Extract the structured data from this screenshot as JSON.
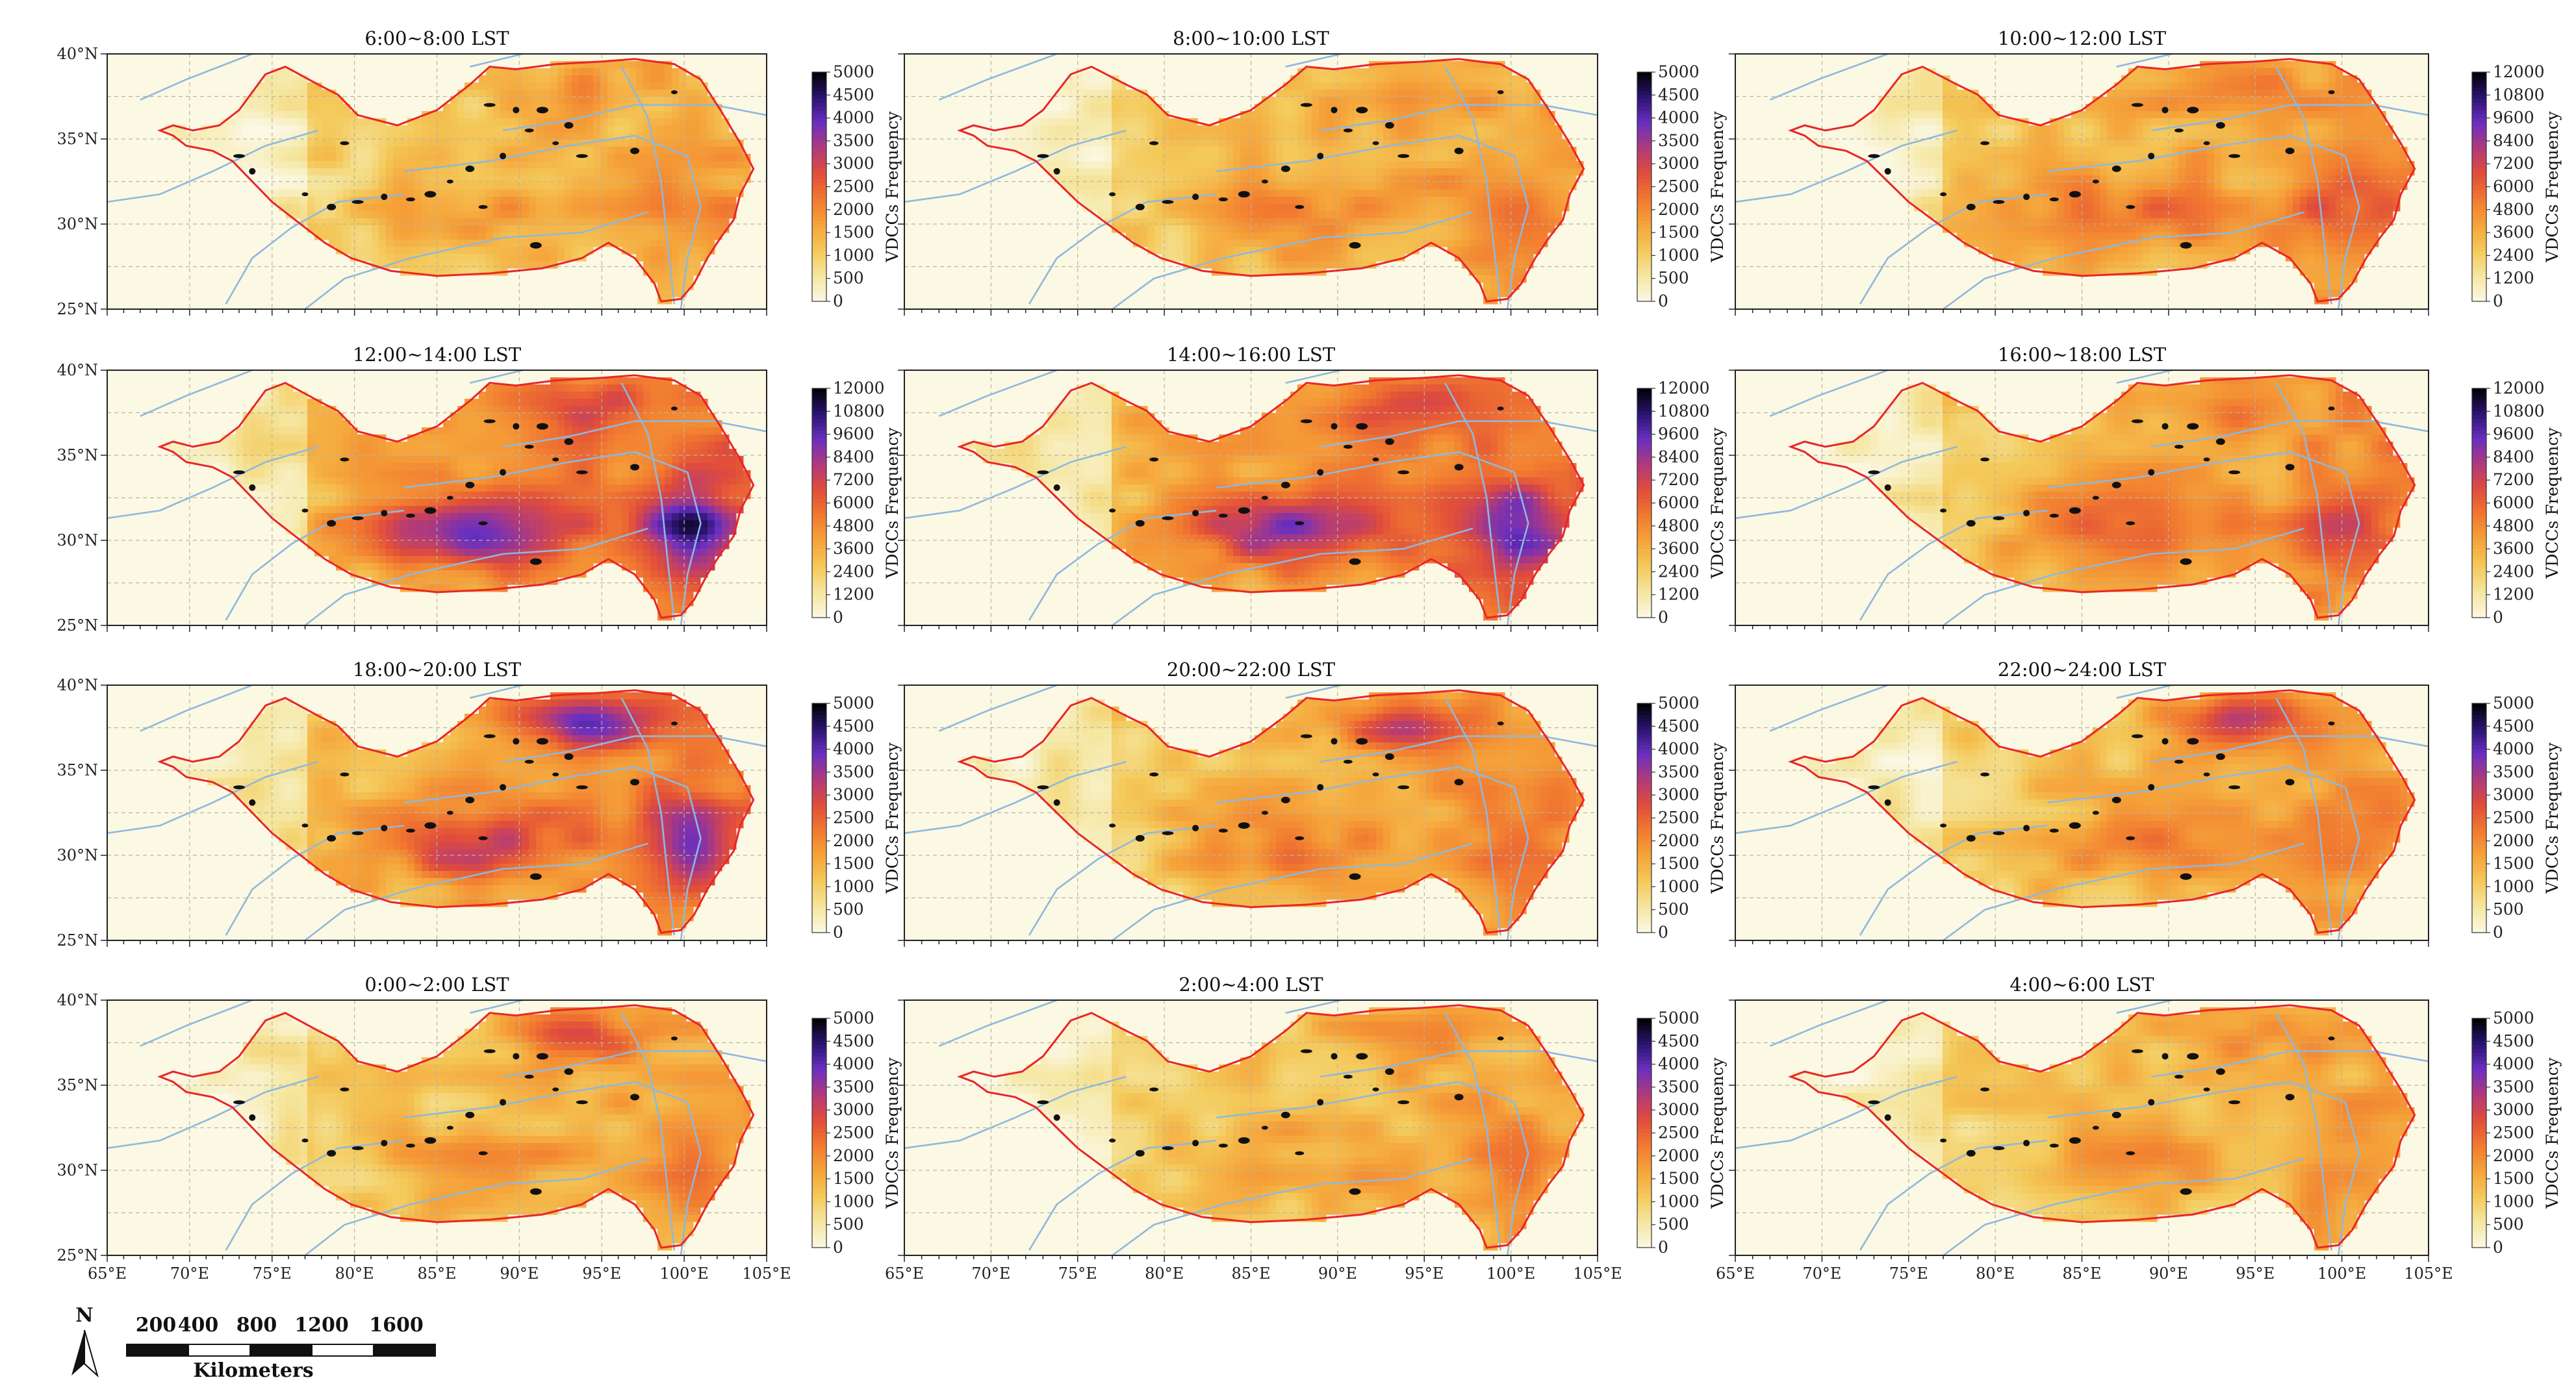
{
  "figure": {
    "colorbar_title": "VDCCs Frequency",
    "lat_labels": [
      "40°N",
      "35°N",
      "30°N",
      "25°N"
    ],
    "lon_labels": [
      "65°E",
      "70°E",
      "75°E",
      "80°E",
      "85°E",
      "90°E",
      "95°E",
      "100°E",
      "105°E"
    ],
    "colormap": [
      "#fbf8e4",
      "#f5e6a0",
      "#f4c95a",
      "#f5a43a",
      "#f17a30",
      "#e14d3a",
      "#b13a7a",
      "#6a2fc0",
      "#2a1470",
      "#000000"
    ],
    "colors": {
      "background": "#fbf8e4",
      "boundary": "#e8262a",
      "river": "#8fb8dc",
      "grid": "#b9b4a0"
    }
  },
  "chart_data": {
    "type": "heatmap",
    "description_field": "Diurnal VDCC frequency over the Tibetan Plateau, 12 two-hour panels",
    "panels": [
      {
        "title": "6:00~8:00 LST",
        "cbar_ticks": [
          "5000",
          "4500",
          "4000",
          "3500",
          "3000",
          "2500",
          "2000",
          "1500",
          "1000",
          "500",
          "0"
        ],
        "vmax": 5000,
        "intensity": 0.3
      },
      {
        "title": "8:00~10:00 LST",
        "cbar_ticks": [
          "5000",
          "4500",
          "4000",
          "3500",
          "3000",
          "2500",
          "2000",
          "1500",
          "1000",
          "500",
          "0"
        ],
        "vmax": 5000,
        "intensity": 0.38
      },
      {
        "title": "10:00~12:00 LST",
        "cbar_ticks": [
          "12000",
          "10800",
          "9600",
          "8400",
          "7200",
          "6000",
          "4800",
          "3600",
          "2400",
          "1200",
          "0"
        ],
        "vmax": 12000,
        "intensity": 0.45
      },
      {
        "title": "12:00~14:00 LST",
        "cbar_ticks": [
          "12000",
          "10800",
          "9600",
          "8400",
          "7200",
          "6000",
          "4800",
          "3600",
          "2400",
          "1200",
          "0"
        ],
        "vmax": 12000,
        "intensity": 0.75
      },
      {
        "title": "14:00~16:00 LST",
        "cbar_ticks": [
          "12000",
          "10800",
          "9600",
          "8400",
          "7200",
          "6000",
          "4800",
          "3600",
          "2400",
          "1200",
          "0"
        ],
        "vmax": 12000,
        "intensity": 0.72
      },
      {
        "title": "16:00~18:00 LST",
        "cbar_ticks": [
          "12000",
          "10800",
          "9600",
          "8400",
          "7200",
          "6000",
          "4800",
          "3600",
          "2400",
          "1200",
          "0"
        ],
        "vmax": 12000,
        "intensity": 0.5
      },
      {
        "title": "18:00~20:00 LST",
        "cbar_ticks": [
          "5000",
          "4500",
          "4000",
          "3500",
          "3000",
          "2500",
          "2000",
          "1500",
          "1000",
          "500",
          "0"
        ],
        "vmax": 5000,
        "intensity": 0.62
      },
      {
        "title": "20:00~22:00 LST",
        "cbar_ticks": [
          "5000",
          "4500",
          "4000",
          "3500",
          "3000",
          "2500",
          "2000",
          "1500",
          "1000",
          "500",
          "0"
        ],
        "vmax": 5000,
        "intensity": 0.42
      },
      {
        "title": "22:00~24:00 LST",
        "cbar_ticks": [
          "5000",
          "4500",
          "4000",
          "3500",
          "3000",
          "2500",
          "2000",
          "1500",
          "1000",
          "500",
          "0"
        ],
        "vmax": 5000,
        "intensity": 0.38
      },
      {
        "title": "0:00~2:00 LST",
        "cbar_ticks": [
          "5000",
          "4500",
          "4000",
          "3500",
          "3000",
          "2500",
          "2000",
          "1500",
          "1000",
          "500",
          "0"
        ],
        "vmax": 5000,
        "intensity": 0.34
      },
      {
        "title": "2:00~4:00 LST",
        "cbar_ticks": [
          "5000",
          "4500",
          "4000",
          "3500",
          "3000",
          "2500",
          "2000",
          "1500",
          "1000",
          "500",
          "0"
        ],
        "vmax": 5000,
        "intensity": 0.3
      },
      {
        "title": "4:00~6:00 LST",
        "cbar_ticks": [
          "5000",
          "4500",
          "4000",
          "3500",
          "3000",
          "2500",
          "2000",
          "1500",
          "1000",
          "500",
          "0"
        ],
        "vmax": 5000,
        "intensity": 0.3
      }
    ],
    "lon_range": [
      65,
      105
    ],
    "lat_range": [
      25,
      40
    ]
  },
  "scale_bar": {
    "north_label": "N",
    "labels": [
      "200",
      "400",
      "800",
      "1200",
      "1600"
    ],
    "unit": "Kilometers"
  }
}
